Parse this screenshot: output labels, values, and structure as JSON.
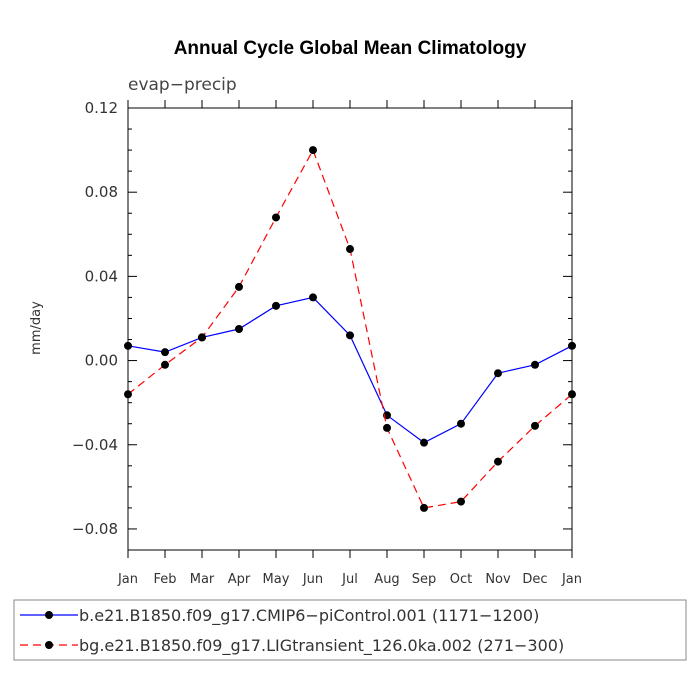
{
  "chart_data": {
    "type": "line",
    "title": "Annual Cycle Global Mean Climatology",
    "subtitle": "evap−precip",
    "ylabel": "mm/day",
    "xlabel": "",
    "ylim": [
      -0.09,
      0.12
    ],
    "yticks": [
      -0.08,
      -0.04,
      0.0,
      0.04,
      0.08,
      0.12
    ],
    "ytick_labels": [
      "−0.08",
      "−0.04",
      "0.00",
      "0.04",
      "0.08",
      "0.12"
    ],
    "categories": [
      "Jan",
      "Feb",
      "Mar",
      "Apr",
      "May",
      "Jun",
      "Jul",
      "Aug",
      "Sep",
      "Oct",
      "Nov",
      "Dec",
      "Jan"
    ],
    "series": [
      {
        "name": "b.e21.B1850.f09_g17.CMIP6−piControl.001 (1171−1200)",
        "color": "#0000ff",
        "dash": "solid",
        "values": [
          0.007,
          0.004,
          0.011,
          0.015,
          0.026,
          0.03,
          0.012,
          -0.026,
          -0.039,
          -0.03,
          -0.006,
          -0.002,
          0.007
        ]
      },
      {
        "name": "bg.e21.B1850.f09_g17.LIGtransient_126.0ka.002 (271−300)",
        "color": "#ff0000",
        "dash": "dashed",
        "values": [
          -0.016,
          -0.002,
          0.011,
          0.035,
          0.068,
          0.1,
          0.053,
          -0.032,
          -0.07,
          -0.067,
          -0.048,
          -0.031,
          -0.016
        ]
      }
    ],
    "grid": false,
    "legend_position": "bottom"
  }
}
